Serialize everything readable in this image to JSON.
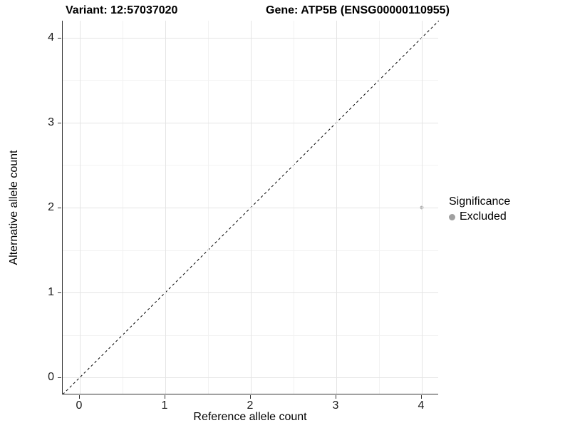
{
  "chart_data": {
    "type": "scatter",
    "title_left": "Variant: 12:57037020",
    "title_right": "Gene: ATP5B (ENSG00000110955)",
    "xlabel": "Reference allele count",
    "ylabel": "Alternative allele count",
    "xlim": [
      -0.2,
      4.2
    ],
    "ylim": [
      -0.2,
      4.2
    ],
    "x_ticks": [
      0,
      1,
      2,
      3,
      4
    ],
    "y_ticks": [
      0,
      1,
      2,
      3,
      4
    ],
    "x_minor_ticks": [
      0.5,
      1.5,
      2.5,
      3.5
    ],
    "y_minor_ticks": [
      0.5,
      1.5,
      2.5,
      3.5
    ],
    "grid": true,
    "legend_position": "right",
    "identity_line": {
      "from": [
        -0.2,
        -0.2
      ],
      "to": [
        4.2,
        4.2
      ],
      "style": "dashed",
      "color": "#000000"
    },
    "points": [
      {
        "x": 4,
        "y": 2,
        "significance": "Excluded",
        "color": "#aaaaaa"
      }
    ],
    "legend": {
      "title": "Significance",
      "items": [
        {
          "label": "Excluded",
          "color": "#a0a0a0"
        }
      ]
    },
    "colors": {
      "background": "#ffffff",
      "grid_major": "#e4e4e4",
      "grid_minor": "#f2f2f2",
      "axis_line": "#333333",
      "point": "#aaaaaa"
    }
  }
}
